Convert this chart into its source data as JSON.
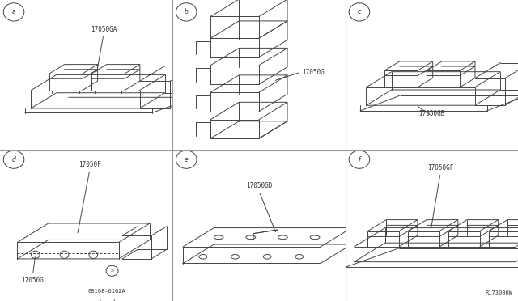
{
  "background_color": "#ffffff",
  "line_color": "#444444",
  "text_color": "#333333",
  "grid_color": "#999999",
  "panel_labels": [
    "a",
    "b",
    "c",
    "d",
    "e",
    "f"
  ],
  "part_labels": [
    "17050GA",
    "17050G",
    "17050GB",
    "17050F",
    "17050GD",
    "17050GF"
  ],
  "bolt_label": "08168-6162A",
  "bolt_sub": "( J )",
  "part_label_d2": "17050G",
  "ref_label": "R173006W",
  "lw": 0.7
}
